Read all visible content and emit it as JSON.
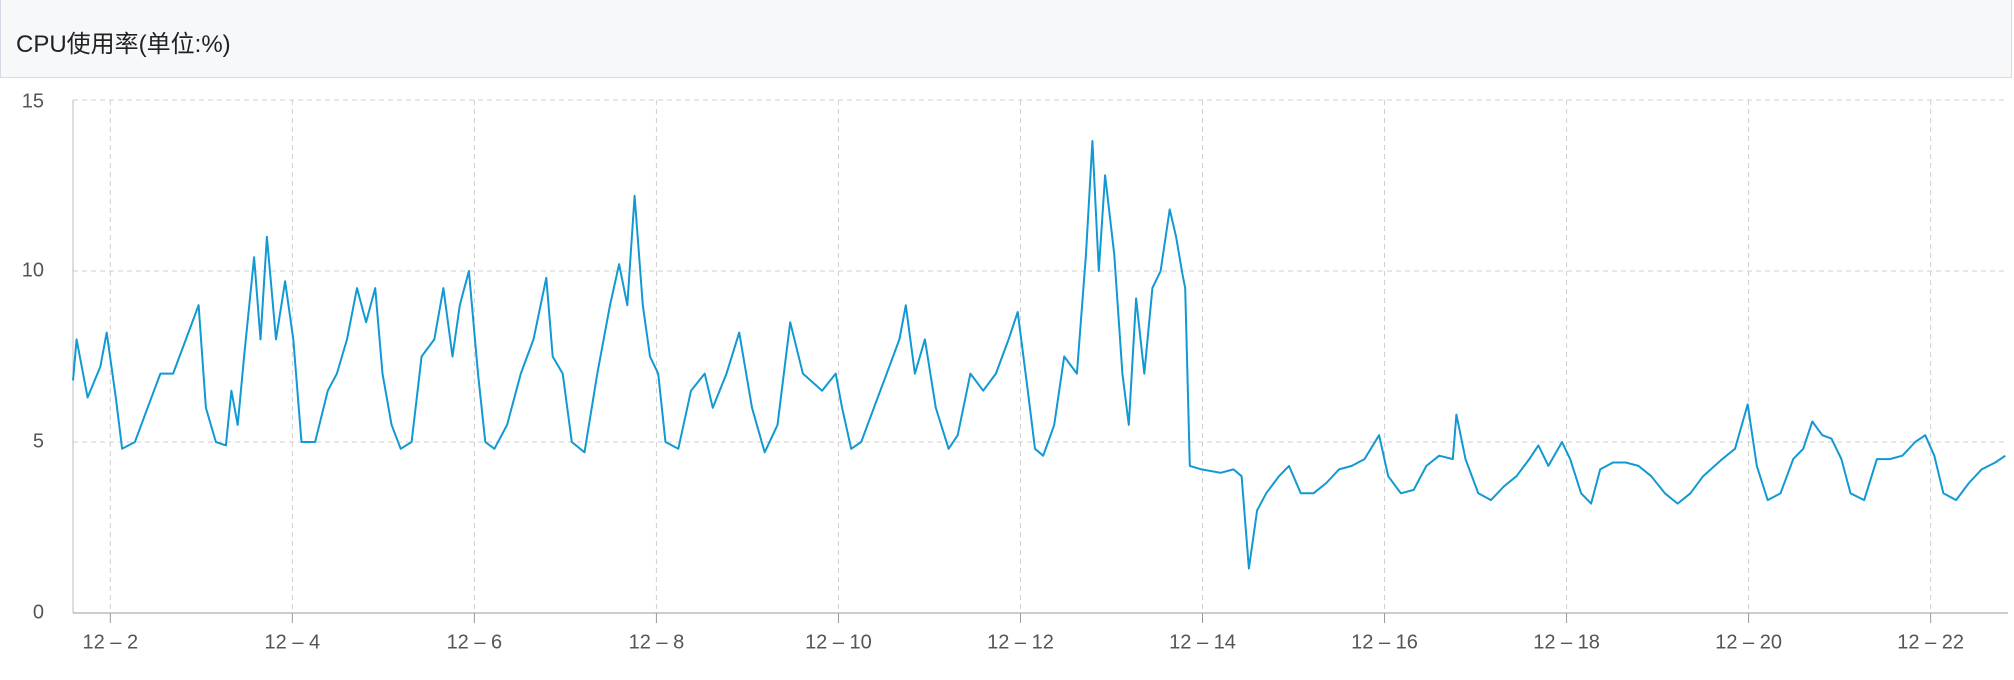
{
  "chart_data": {
    "type": "line",
    "title": "CPU使用率(单位:%)",
    "color": "#1199d3",
    "grid": true,
    "xlim": [
      1.59,
      22.85
    ],
    "xticks": [
      {
        "value": 2,
        "label": "12 – 2"
      },
      {
        "value": 4,
        "label": "12 – 4"
      },
      {
        "value": 6,
        "label": "12 – 6"
      },
      {
        "value": 8,
        "label": "12 – 8"
      },
      {
        "value": 10,
        "label": "12 – 10"
      },
      {
        "value": 12,
        "label": "12 – 12"
      },
      {
        "value": 14,
        "label": "12 – 14"
      },
      {
        "value": 16,
        "label": "12 – 16"
      },
      {
        "value": 18,
        "label": "12 – 18"
      },
      {
        "value": 20,
        "label": "12 – 20"
      },
      {
        "value": 22,
        "label": "12 – 22"
      }
    ],
    "ylim": [
      0,
      15
    ],
    "yticks": [
      0,
      5,
      10,
      15
    ],
    "x": [
      1.59,
      1.63,
      1.75,
      1.89,
      1.96,
      2.06,
      2.13,
      2.27,
      2.41,
      2.55,
      2.69,
      2.83,
      2.97,
      3.05,
      3.16,
      3.27,
      3.33,
      3.4,
      3.47,
      3.58,
      3.65,
      3.72,
      3.82,
      3.92,
      4.01,
      4.1,
      4.25,
      4.39,
      4.49,
      4.6,
      4.71,
      4.81,
      4.91,
      4.99,
      5.09,
      5.19,
      5.31,
      5.42,
      5.56,
      5.66,
      5.76,
      5.84,
      5.94,
      6.04,
      6.12,
      6.22,
      6.36,
      6.51,
      6.65,
      6.79,
      6.86,
      6.97,
      7.07,
      7.21,
      7.35,
      7.49,
      7.59,
      7.68,
      7.76,
      7.85,
      7.93,
      8.02,
      8.1,
      8.24,
      8.38,
      8.53,
      8.62,
      8.77,
      8.91,
      9.05,
      9.19,
      9.33,
      9.47,
      9.61,
      9.82,
      9.97,
      10.04,
      10.14,
      10.25,
      10.39,
      10.53,
      10.67,
      10.74,
      10.84,
      10.95,
      11.07,
      11.21,
      11.31,
      11.45,
      11.59,
      11.73,
      11.87,
      11.97,
      12.08,
      12.16,
      12.25,
      12.37,
      12.48,
      12.62,
      12.72,
      12.79,
      12.86,
      12.93,
      13.03,
      13.12,
      13.19,
      13.27,
      13.36,
      13.45,
      13.54,
      13.64,
      13.71,
      13.78,
      13.81,
      13.86,
      13.99,
      14.2,
      14.34,
      14.43,
      14.51,
      14.6,
      14.7,
      14.84,
      14.95,
      15.08,
      15.22,
      15.36,
      15.5,
      15.64,
      15.78,
      15.94,
      16.04,
      16.18,
      16.32,
      16.46,
      16.6,
      16.75,
      16.79,
      16.89,
      17.03,
      17.17,
      17.31,
      17.45,
      17.59,
      17.69,
      17.8,
      17.95,
      18.04,
      18.16,
      18.27,
      18.37,
      18.51,
      18.65,
      18.79,
      18.93,
      19.08,
      19.22,
      19.36,
      19.5,
      19.71,
      19.85,
      19.99,
      20.09,
      20.21,
      20.35,
      20.49,
      20.6,
      20.7,
      20.81,
      20.91,
      21.02,
      21.12,
      21.27,
      21.41,
      21.55,
      21.69,
      21.83,
      21.94,
      22.04,
      22.14,
      22.28,
      22.42,
      22.56,
      22.71,
      22.82
    ],
    "values": [
      6.8,
      8.0,
      6.3,
      7.2,
      8.2,
      6.3,
      4.8,
      5.0,
      6.0,
      7.0,
      7.0,
      8.0,
      9.0,
      6.0,
      5.0,
      4.9,
      6.5,
      5.5,
      7.5,
      10.4,
      8.0,
      11.0,
      8.0,
      9.7,
      8.0,
      5.0,
      5.0,
      6.5,
      7.0,
      8.0,
      9.5,
      8.5,
      9.5,
      7.0,
      5.5,
      4.8,
      5.0,
      7.5,
      8.0,
      9.5,
      7.5,
      9.0,
      10.0,
      7.0,
      5.0,
      4.8,
      5.5,
      7.0,
      8.0,
      9.8,
      7.5,
      7.0,
      5.0,
      4.7,
      7.0,
      9.0,
      10.2,
      9.0,
      12.2,
      9.0,
      7.5,
      7.0,
      5.0,
      4.8,
      6.5,
      7.0,
      6.0,
      7.0,
      8.2,
      6.0,
      4.7,
      5.5,
      8.5,
      7.0,
      6.5,
      7.0,
      6.0,
      4.8,
      5.0,
      6.0,
      7.0,
      8.0,
      9.0,
      7.0,
      8.0,
      6.0,
      4.8,
      5.2,
      7.0,
      6.5,
      7.0,
      8.0,
      8.8,
      6.5,
      4.8,
      4.6,
      5.5,
      7.5,
      7.0,
      10.5,
      13.8,
      10.0,
      12.8,
      10.5,
      7.0,
      5.5,
      9.2,
      7.0,
      9.5,
      10.0,
      11.8,
      11.0,
      9.9,
      9.5,
      4.3,
      4.2,
      4.1,
      4.2,
      4.0,
      1.3,
      3.0,
      3.5,
      4.0,
      4.3,
      3.5,
      3.5,
      3.8,
      4.2,
      4.3,
      4.5,
      5.2,
      4.0,
      3.5,
      3.6,
      4.3,
      4.6,
      4.5,
      5.8,
      4.5,
      3.5,
      3.3,
      3.7,
      4.0,
      4.5,
      4.9,
      4.3,
      5.0,
      4.5,
      3.5,
      3.2,
      4.2,
      4.4,
      4.4,
      4.3,
      4.0,
      3.5,
      3.2,
      3.5,
      4.0,
      4.5,
      4.8,
      6.1,
      4.3,
      3.3,
      3.5,
      4.5,
      4.8,
      5.6,
      5.2,
      5.1,
      4.5,
      3.5,
      3.3,
      4.5,
      4.5,
      4.6,
      5.0,
      5.2,
      4.6,
      3.5,
      3.3,
      3.8,
      4.2,
      4.4,
      4.6
    ]
  }
}
